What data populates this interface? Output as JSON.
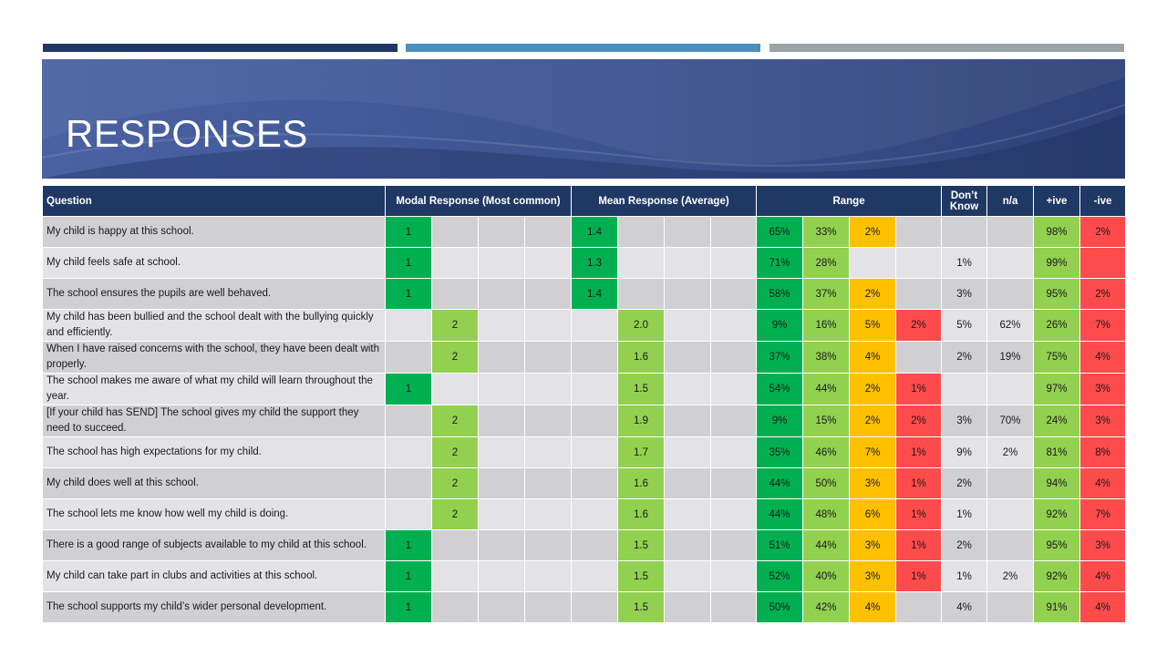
{
  "slide": {
    "title": "RESPONSES"
  },
  "table": {
    "headers": {
      "question": "Question",
      "modal": "Modal Response (Most common)",
      "mean": "Mean Response (Average)",
      "range": "Range",
      "dont_know": "Don’t Know",
      "na": "n/a",
      "positive": "+ive",
      "negative": "-ive"
    },
    "rows": [
      {
        "q": "My child is happy at this school.",
        "modal": 1,
        "mean": "1.4",
        "range": [
          "65%",
          "33%",
          "2%",
          ""
        ],
        "dk": "",
        "na": "",
        "pos": "98%",
        "neg": "2%"
      },
      {
        "q": "My child feels safe at school.",
        "modal": 1,
        "mean": "1.3",
        "range": [
          "71%",
          "28%",
          "",
          ""
        ],
        "dk": "1%",
        "na": "",
        "pos": "99%",
        "neg": ""
      },
      {
        "q": "The school ensures the pupils are well behaved.",
        "modal": 1,
        "mean": "1.4",
        "range": [
          "58%",
          "37%",
          "2%",
          ""
        ],
        "dk": "3%",
        "na": "",
        "pos": "95%",
        "neg": "2%"
      },
      {
        "q": "My child has been bullied and the school dealt with the bullying quickly and efficiently.",
        "modal": 2,
        "mean": "2.0",
        "range": [
          "9%",
          "16%",
          "5%",
          "2%"
        ],
        "dk": "5%",
        "na": "62%",
        "pos": "26%",
        "neg": "7%"
      },
      {
        "q": "When I have raised concerns with the school, they have been dealt with properly.",
        "modal": 2,
        "mean": "1.6",
        "range": [
          "37%",
          "38%",
          "4%",
          ""
        ],
        "dk": "2%",
        "na": "19%",
        "pos": "75%",
        "neg": "4%"
      },
      {
        "q": "The school makes me aware of what my child will learn throughout the year.",
        "modal": 1,
        "mean": "1.5",
        "range": [
          "54%",
          "44%",
          "2%",
          "1%"
        ],
        "dk": "",
        "na": "",
        "pos": "97%",
        "neg": "3%"
      },
      {
        "q": "[If your child has SEND] The school gives my child the support they need to succeed.",
        "modal": 2,
        "mean": "1.9",
        "range": [
          "9%",
          "15%",
          "2%",
          "2%"
        ],
        "dk": "3%",
        "na": "70%",
        "pos": "24%",
        "neg": "3%"
      },
      {
        "q": "The school has high expectations for my child.",
        "modal": 2,
        "mean": "1.7",
        "range": [
          "35%",
          "46%",
          "7%",
          "1%"
        ],
        "dk": "9%",
        "na": "2%",
        "pos": "81%",
        "neg": "8%"
      },
      {
        "q": "My child does well at this school.",
        "modal": 2,
        "mean": "1.6",
        "range": [
          "44%",
          "50%",
          "3%",
          "1%"
        ],
        "dk": "2%",
        "na": "",
        "pos": "94%",
        "neg": "4%"
      },
      {
        "q": "The school lets me know how well my child is doing.",
        "modal": 2,
        "mean": "1.6",
        "range": [
          "44%",
          "48%",
          "6%",
          "1%"
        ],
        "dk": "1%",
        "na": "",
        "pos": "92%",
        "neg": "7%"
      },
      {
        "q": "There is a good range of subjects available to my child at this school.",
        "modal": 1,
        "mean": "1.5",
        "range": [
          "51%",
          "44%",
          "3%",
          "1%"
        ],
        "dk": "2%",
        "na": "",
        "pos": "95%",
        "neg": "3%"
      },
      {
        "q": "My child can take part in clubs and activities at this school.",
        "modal": 1,
        "mean": "1.5",
        "range": [
          "52%",
          "40%",
          "3%",
          "1%"
        ],
        "dk": "1%",
        "na": "2%",
        "pos": "92%",
        "neg": "4%"
      },
      {
        "q": "The school supports my child’s wider personal development.",
        "modal": 1,
        "mean": "1.5",
        "range": [
          "50%",
          "42%",
          "4%",
          ""
        ],
        "dk": "4%",
        "na": "",
        "pos": "91%",
        "neg": "4%"
      }
    ]
  },
  "colors": {
    "header": "#1f3864",
    "strongly_agree": "#00b050",
    "agree": "#92d050",
    "disagree": "#ffc000",
    "strongly_disagree": "#ff4b4b"
  }
}
